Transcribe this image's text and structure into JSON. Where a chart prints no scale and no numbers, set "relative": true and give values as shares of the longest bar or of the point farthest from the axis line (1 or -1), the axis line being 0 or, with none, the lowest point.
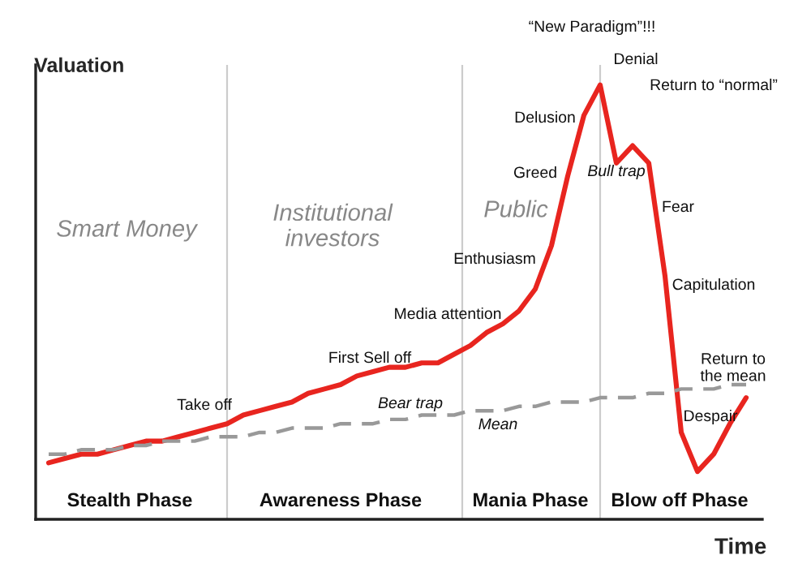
{
  "chart_data": {
    "type": "line",
    "relative": true,
    "xlabel": "Time",
    "ylabel": "Valuation",
    "legend": false,
    "marker": "none",
    "categories": [
      null,
      null,
      null,
      null,
      null,
      null,
      null,
      null,
      null,
      null,
      null,
      null,
      null,
      null,
      null,
      null,
      null,
      null,
      null,
      null,
      null,
      null,
      null,
      null,
      null,
      null,
      null,
      null,
      null,
      null,
      null,
      null,
      null,
      null,
      null,
      null,
      null,
      null,
      null,
      null,
      null,
      null,
      null,
      null
    ],
    "series": [
      {
        "color": "#e8251f",
        "line_style": "solid",
        "values": [
          0.13,
          0.14,
          0.15,
          0.15,
          0.16,
          0.17,
          0.18,
          0.18,
          0.19,
          0.2,
          0.21,
          0.22,
          0.24,
          0.25,
          0.26,
          0.27,
          0.29,
          0.3,
          0.31,
          0.33,
          0.34,
          0.35,
          0.35,
          0.36,
          0.36,
          0.38,
          0.4,
          0.43,
          0.45,
          0.48,
          0.53,
          0.63,
          0.79,
          0.93,
          1.0,
          0.82,
          0.86,
          0.82,
          0.56,
          0.2,
          0.11,
          0.15,
          0.22,
          0.28
        ]
      },
      {
        "color": "#999999",
        "line_style": "dashed",
        "values": [
          0.15,
          0.15,
          0.16,
          0.16,
          0.16,
          0.17,
          0.17,
          0.18,
          0.18,
          0.18,
          0.19,
          0.19,
          0.19,
          0.2,
          0.2,
          0.21,
          0.21,
          0.21,
          0.22,
          0.22,
          0.22,
          0.23,
          0.23,
          0.24,
          0.24,
          0.24,
          0.25,
          0.25,
          0.25,
          0.26,
          0.26,
          0.27,
          0.27,
          0.27,
          0.28,
          0.28,
          0.28,
          0.29,
          0.29,
          0.3,
          0.3,
          0.3,
          0.31,
          0.31
        ]
      }
    ],
    "annotations": [
      "Smart Money",
      "Institutional\ninvestors",
      "Public",
      "Take off",
      "First Sell off",
      "Bear trap",
      "Mean",
      "Media attention",
      "Enthusiasm",
      "Greed",
      "Delusion",
      "“New Paradigm”!!!",
      "Denial",
      "Bull trap",
      "Return to “normal”",
      "Fear",
      "Capitulation",
      "Return to\nthe mean",
      "Despair",
      "Stealth Phase",
      "Awareness Phase",
      "Mania Phase",
      "Blow off Phase"
    ]
  }
}
